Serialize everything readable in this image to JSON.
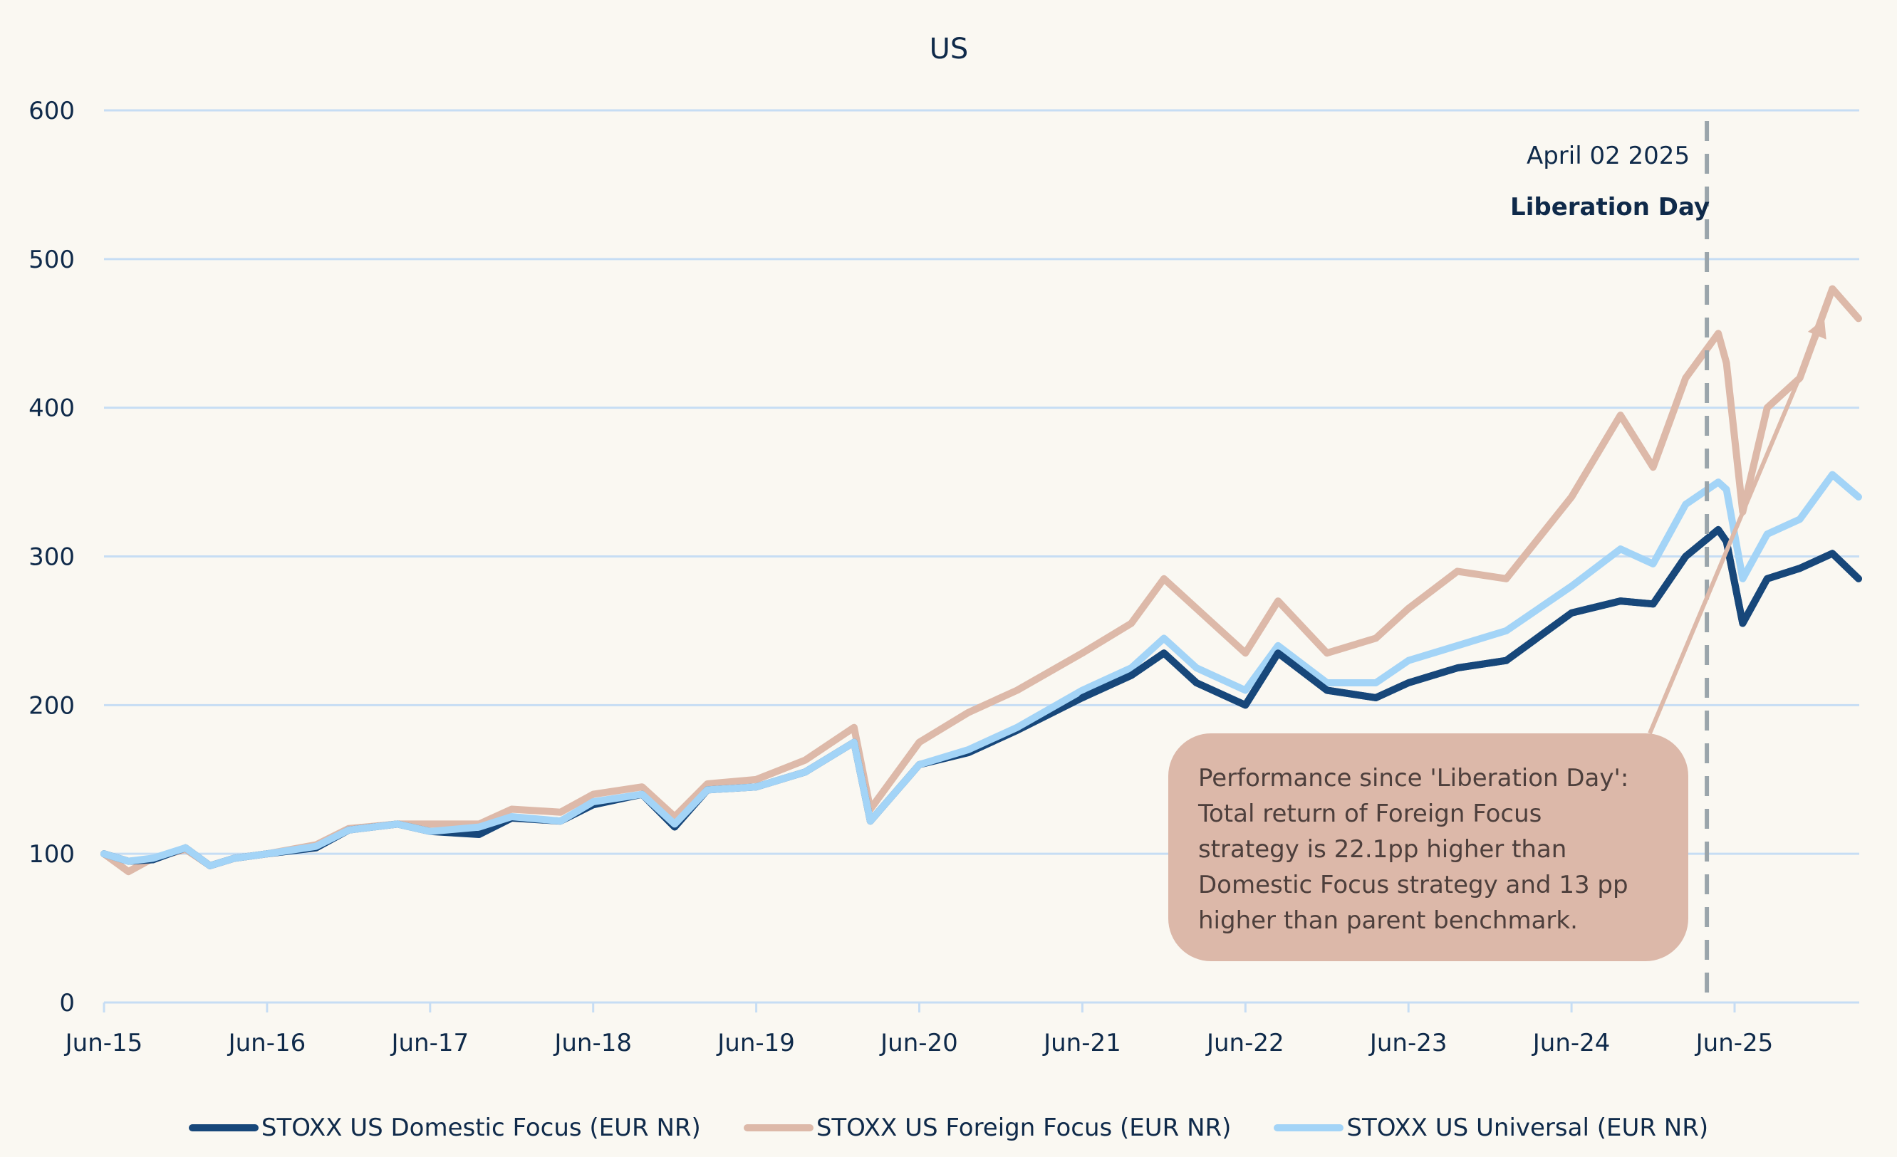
{
  "chart_data": {
    "type": "line",
    "title": "US",
    "xlabel": "",
    "ylabel": "",
    "ylim": [
      0,
      600
    ],
    "yticks": [
      0,
      100,
      200,
      300,
      400,
      500,
      600
    ],
    "xtick_labels": [
      "Jun-15",
      "Jun-16",
      "Jun-17",
      "Jun-18",
      "Jun-19",
      "Jun-20",
      "Jun-21",
      "Jun-22",
      "Jun-23",
      "Jun-24",
      "Jun-25"
    ],
    "x_unit": "years since Jun-2015",
    "xlim": [
      0,
      10.76
    ],
    "grid": true,
    "legend_position": "bottom",
    "x": [
      0,
      0.15,
      0.3,
      0.5,
      0.65,
      0.8,
      1.0,
      1.3,
      1.5,
      1.8,
      2.0,
      2.3,
      2.5,
      2.8,
      3.0,
      3.3,
      3.5,
      3.7,
      4.0,
      4.3,
      4.6,
      4.7,
      5.0,
      5.3,
      5.6,
      6.0,
      6.3,
      6.5,
      6.7,
      7.0,
      7.2,
      7.5,
      7.8,
      8.0,
      8.3,
      8.6,
      9.0,
      9.3,
      9.5,
      9.7,
      9.9,
      9.95,
      10.05,
      10.2,
      10.4,
      10.6,
      10.76
    ],
    "series": [
      {
        "name": "STOXX US Domestic Focus (EUR NR)",
        "color": "#17477a",
        "values": [
          100,
          95,
          96,
          104,
          92,
          97,
          100,
          104,
          116,
          120,
          115,
          113,
          124,
          122,
          133,
          140,
          118,
          143,
          145,
          155,
          175,
          122,
          160,
          168,
          183,
          205,
          220,
          235,
          215,
          200,
          235,
          210,
          205,
          215,
          225,
          230,
          262,
          270,
          268,
          300,
          318,
          310,
          255,
          285,
          292,
          302,
          285
        ]
      },
      {
        "name": "STOXX US Foreign Focus (EUR NR)",
        "color": "#ddb9a9",
        "values": [
          100,
          88,
          97,
          103,
          92,
          97,
          100,
          106,
          117,
          120,
          120,
          120,
          130,
          128,
          140,
          145,
          125,
          147,
          150,
          163,
          185,
          130,
          175,
          195,
          210,
          235,
          255,
          285,
          265,
          235,
          270,
          235,
          245,
          265,
          290,
          285,
          340,
          395,
          360,
          420,
          450,
          430,
          330,
          400,
          420,
          480,
          460
        ]
      },
      {
        "name": "STOXX US Universal (EUR NR)",
        "color": "#a3d4f7",
        "values": [
          100,
          95,
          97,
          104,
          92,
          97,
          100,
          105,
          116,
          120,
          115,
          118,
          125,
          122,
          135,
          140,
          120,
          143,
          145,
          155,
          175,
          122,
          160,
          170,
          185,
          210,
          225,
          245,
          225,
          210,
          240,
          215,
          215,
          230,
          240,
          250,
          280,
          305,
          295,
          335,
          350,
          345,
          285,
          315,
          325,
          355,
          340
        ]
      }
    ],
    "annotations": [
      {
        "type": "vline",
        "x": 9.83,
        "date_label": "April 02 2025",
        "event_label": "Liberation Day",
        "color": "#9aa5ab"
      },
      {
        "type": "arrow",
        "from": [
          9.55,
          250
        ],
        "to": [
          10.55,
          460
        ],
        "color": "#ddb9a9"
      }
    ]
  },
  "note": {
    "lines": [
      "Performance since 'Liberation Day':",
      "Total return of Foreign Focus",
      "strategy is 22.1pp higher than",
      "Domestic Focus strategy and 13 pp",
      "higher than parent benchmark."
    ]
  },
  "colors": {
    "background": "#faf8f2",
    "grid": "#c6ddf4",
    "text": "#0f2a4a",
    "note_fill": "#dcb8a9",
    "note_text": "#4d3f3c"
  }
}
